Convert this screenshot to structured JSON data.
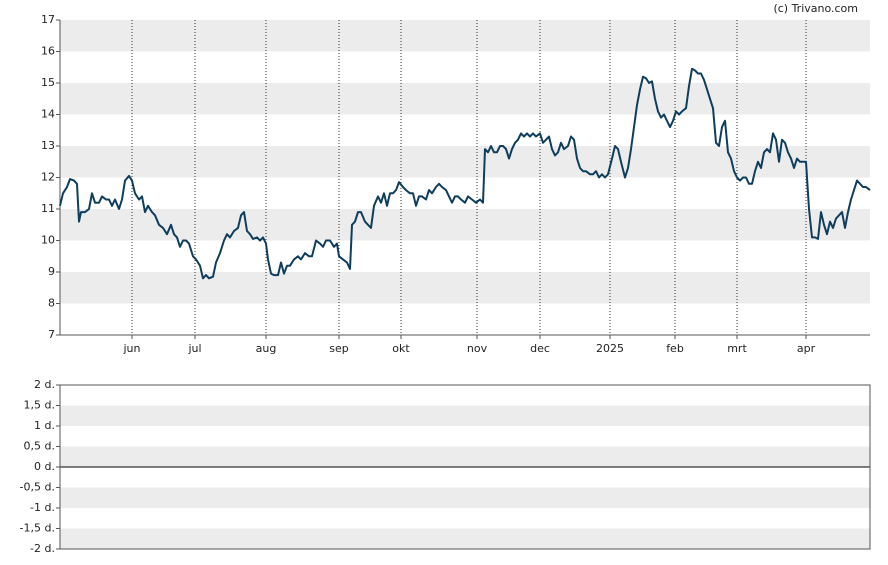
{
  "chart_data": [
    {
      "type": "line",
      "attribution": "(c) Trivano.com",
      "color": "#0f3d5c",
      "grid": true,
      "ylim": [
        7,
        17
      ],
      "yticks": [
        7,
        8,
        9,
        10,
        11,
        12,
        13,
        14,
        15,
        16,
        17
      ],
      "xlim": [
        0,
        810
      ],
      "xticks": [
        {
          "value": 72,
          "label": "jun"
        },
        {
          "value": 135,
          "label": "jul"
        },
        {
          "value": 206,
          "label": "aug"
        },
        {
          "value": 279,
          "label": "sep"
        },
        {
          "value": 341,
          "label": "okt"
        },
        {
          "value": 417,
          "label": "nov"
        },
        {
          "value": 480,
          "label": "dec"
        },
        {
          "value": 550,
          "label": "2025"
        },
        {
          "value": 615,
          "label": "feb"
        },
        {
          "value": 677,
          "label": "mrt"
        },
        {
          "value": 746,
          "label": "apr"
        }
      ],
      "x": [
        0,
        3,
        7,
        10,
        14,
        17,
        19,
        21,
        25,
        29,
        32,
        35,
        39,
        42,
        46,
        49,
        52,
        55,
        59,
        62,
        65,
        69,
        72,
        75,
        79,
        82,
        85,
        88,
        92,
        95,
        99,
        103,
        107,
        111,
        114,
        117,
        120,
        123,
        126,
        129,
        133,
        136,
        140,
        143,
        146,
        149,
        153,
        156,
        160,
        164,
        167,
        170,
        174,
        178,
        181,
        184,
        187,
        190,
        193,
        197,
        200,
        203,
        206,
        208,
        211,
        214,
        218,
        221,
        224,
        227,
        230,
        234,
        238,
        241,
        245,
        249,
        252,
        256,
        260,
        263,
        266,
        270,
        274,
        277,
        279,
        283,
        287,
        290,
        292,
        295,
        298,
        301,
        305,
        308,
        311,
        314,
        318,
        321,
        324,
        327,
        330,
        333,
        336,
        339,
        343,
        346,
        350,
        353,
        356,
        359,
        362,
        366,
        369,
        372,
        376,
        379,
        382,
        386,
        389,
        392,
        395,
        398,
        401,
        405,
        408,
        412,
        416,
        420,
        423,
        425,
        428,
        431,
        434,
        437,
        440,
        443,
        446,
        449,
        452,
        455,
        458,
        461,
        464,
        467,
        470,
        473,
        476,
        480,
        483,
        486,
        489,
        492,
        495,
        498,
        501,
        504,
        508,
        511,
        514,
        517,
        520,
        523,
        526,
        530,
        533,
        536,
        539,
        542,
        545,
        548,
        552,
        555,
        558,
        561,
        565,
        568,
        571,
        574,
        577,
        580,
        583,
        586,
        589,
        592,
        595,
        598,
        601,
        604,
        607,
        610,
        613,
        616,
        619,
        622,
        626,
        629,
        632,
        635,
        638,
        641,
        644,
        647,
        650,
        653,
        656,
        659,
        662,
        665,
        668,
        671,
        674,
        677,
        680,
        683,
        686,
        689,
        692,
        695,
        698,
        701,
        704,
        707,
        710,
        713,
        716,
        719,
        722,
        725,
        728,
        731,
        734,
        737,
        740,
        743,
        746,
        749,
        752,
        755,
        758,
        761,
        764,
        767,
        770,
        773,
        776,
        779,
        782,
        785,
        788,
        791,
        794,
        797,
        800,
        803,
        806,
        810
      ],
      "values": [
        11.1,
        11.5,
        11.7,
        11.95,
        11.9,
        11.8,
        10.6,
        10.9,
        10.9,
        11.0,
        11.5,
        11.2,
        11.2,
        11.4,
        11.3,
        11.3,
        11.1,
        11.3,
        11.0,
        11.3,
        11.9,
        12.05,
        11.9,
        11.5,
        11.3,
        11.4,
        10.9,
        11.1,
        10.9,
        10.8,
        10.5,
        10.4,
        10.2,
        10.5,
        10.2,
        10.1,
        9.8,
        10.0,
        10.0,
        9.9,
        9.5,
        9.4,
        9.2,
        8.8,
        8.9,
        8.8,
        8.85,
        9.3,
        9.6,
        10.0,
        10.2,
        10.1,
        10.3,
        10.4,
        10.8,
        10.9,
        10.3,
        10.2,
        10.05,
        10.1,
        10.0,
        10.1,
        9.9,
        9.4,
        8.95,
        8.9,
        8.9,
        9.3,
        8.95,
        9.2,
        9.2,
        9.4,
        9.5,
        9.4,
        9.6,
        9.5,
        9.5,
        10.0,
        9.9,
        9.8,
        10.0,
        10.0,
        9.8,
        9.9,
        9.5,
        9.4,
        9.3,
        9.1,
        10.5,
        10.6,
        10.9,
        10.9,
        10.6,
        10.5,
        10.4,
        11.1,
        11.4,
        11.2,
        11.5,
        11.1,
        11.5,
        11.5,
        11.6,
        11.85,
        11.7,
        11.6,
        11.5,
        11.5,
        11.1,
        11.4,
        11.4,
        11.3,
        11.6,
        11.5,
        11.7,
        11.8,
        11.7,
        11.6,
        11.4,
        11.2,
        11.4,
        11.4,
        11.3,
        11.2,
        11.4,
        11.3,
        11.2,
        11.3,
        11.2,
        12.9,
        12.8,
        13.0,
        12.8,
        12.8,
        13.0,
        13.0,
        12.9,
        12.6,
        12.9,
        13.1,
        13.2,
        13.4,
        13.3,
        13.4,
        13.3,
        13.4,
        13.3,
        13.4,
        13.1,
        13.2,
        13.3,
        12.9,
        12.7,
        12.8,
        13.1,
        12.9,
        13.0,
        13.3,
        13.2,
        12.6,
        12.3,
        12.2,
        12.2,
        12.1,
        12.1,
        12.2,
        12.0,
        12.1,
        12.0,
        12.1,
        12.6,
        13.0,
        12.9,
        12.5,
        12.0,
        12.3,
        12.9,
        13.6,
        14.3,
        14.8,
        15.2,
        15.15,
        15.0,
        15.05,
        14.5,
        14.1,
        13.9,
        14.0,
        13.8,
        13.6,
        13.8,
        14.1,
        14.0,
        14.1,
        14.2,
        14.9,
        15.45,
        15.4,
        15.3,
        15.3,
        15.1,
        14.8,
        14.5,
        14.2,
        13.1,
        13.0,
        13.6,
        13.8,
        12.8,
        12.6,
        12.2,
        12.0,
        11.9,
        12.0,
        12.0,
        11.8,
        11.8,
        12.2,
        12.5,
        12.3,
        12.8,
        12.9,
        12.8,
        13.4,
        13.2,
        12.5,
        13.2,
        13.1,
        12.8,
        12.6,
        12.3,
        12.6,
        12.5,
        12.5,
        12.5,
        11.0,
        10.1,
        10.1,
        10.05,
        10.9,
        10.5,
        10.2,
        10.6,
        10.4,
        10.7,
        10.8,
        10.9,
        10.4,
        10.9,
        11.3,
        11.6,
        11.9,
        11.8,
        11.7,
        11.7,
        11.6
      ]
    },
    {
      "type": "empty",
      "grid": true,
      "ylim": [
        -2,
        2
      ],
      "yticks": [
        {
          "value": -2,
          "label": "-2 d."
        },
        {
          "value": -1.5,
          "label": "-1,5 d."
        },
        {
          "value": -1,
          "label": "-1 d."
        },
        {
          "value": -0.5,
          "label": "-0,5 d."
        },
        {
          "value": 0,
          "label": "0 d."
        },
        {
          "value": 0.5,
          "label": "0,5 d."
        },
        {
          "value": 1,
          "label": "1 d."
        },
        {
          "value": 1.5,
          "label": "1,5 d."
        },
        {
          "value": 2,
          "label": "2 d."
        }
      ]
    }
  ]
}
